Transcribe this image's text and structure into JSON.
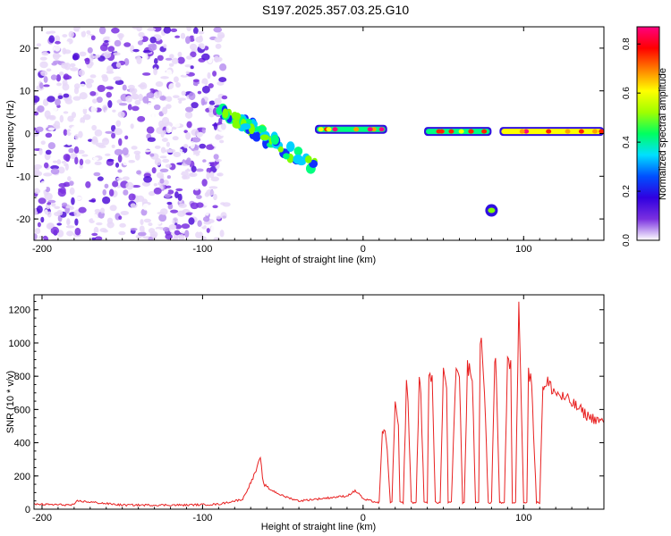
{
  "title": "S197.2025.357.03.25.G10",
  "colors": {
    "snr_line": "#e82020",
    "colormap": [
      "#ffffff",
      "#e8d8f8",
      "#b890f0",
      "#7a30e0",
      "#5010d8",
      "#1030ff",
      "#00d0ff",
      "#00ff80",
      "#80ff00",
      "#ffff00",
      "#ffa000",
      "#ff2000",
      "#ff0080"
    ]
  },
  "chart_data": [
    {
      "type": "heatmap",
      "name": "spectrogram",
      "xlabel": "Height of straight line (km)",
      "ylabel": "Frequency (Hz)",
      "xlim": [
        -205,
        150
      ],
      "ylim": [
        -25,
        25
      ],
      "x_ticks": [
        -200,
        -100,
        0,
        100
      ],
      "x_tick_labels": [
        "-200",
        "-100",
        "0",
        "100"
      ],
      "y_ticks": [
        -20,
        -10,
        0,
        10,
        20
      ],
      "y_tick_labels": [
        "-20",
        "-10",
        "0",
        "10",
        "20"
      ],
      "colorbar": {
        "label": "Normalized spectral amplitude",
        "range": [
          0.0,
          0.87
        ],
        "ticks": [
          0.0,
          0.2,
          0.4,
          0.6,
          0.8
        ],
        "tick_labels": [
          "0.0",
          "0.2",
          "0.4",
          "0.6",
          "0.8"
        ]
      },
      "features": [
        {
          "kind": "noise",
          "x_range": [
            -205,
            -85
          ],
          "freq_range": [
            -25,
            25
          ],
          "amplitude": 0.12
        },
        {
          "kind": "diagonal",
          "x_range": [
            -90,
            -30
          ],
          "freq_range": [
            6,
            -8
          ],
          "amplitude": 0.35
        },
        {
          "kind": "band",
          "x_range": [
            -30,
            15
          ],
          "freq": 1,
          "amplitude": 0.4
        },
        {
          "kind": "band",
          "x_range": [
            38,
            80
          ],
          "freq": 0.5,
          "amplitude": 0.45
        },
        {
          "kind": "blob",
          "x": 80,
          "freq": -18,
          "amplitude": 0.35
        },
        {
          "kind": "band",
          "x_range": [
            85,
            150
          ],
          "freq": 0.5,
          "amplitude": 0.55
        }
      ]
    },
    {
      "type": "line",
      "name": "snr",
      "xlabel": "Height of straight line (km)",
      "ylabel": "SNR (10 * v/v)",
      "xlim": [
        -205,
        150
      ],
      "ylim": [
        0,
        1290
      ],
      "x_ticks": [
        -200,
        -100,
        0,
        100
      ],
      "x_tick_labels": [
        "-200",
        "-100",
        "0",
        "100"
      ],
      "y_ticks": [
        0,
        200,
        400,
        600,
        800,
        1000,
        1200
      ],
      "y_tick_labels": [
        "0",
        "200",
        "400",
        "600",
        "800",
        "1000",
        "1200"
      ],
      "series": [
        {
          "name": "SNR",
          "x": [
            -205,
            -180,
            -178,
            -150,
            -110,
            -90,
            -75,
            -68,
            -64,
            -62,
            -58,
            -50,
            -40,
            -30,
            -20,
            -10,
            -5,
            -2,
            0,
            5,
            9,
            10,
            12,
            13,
            15,
            17,
            18,
            20,
            22,
            23,
            25,
            27,
            28,
            30,
            33,
            35,
            36,
            38,
            40,
            41,
            43,
            45,
            48,
            50,
            52,
            53,
            55,
            58,
            60,
            62,
            63,
            65,
            68,
            70,
            72,
            73,
            75,
            78,
            80,
            82,
            83,
            85,
            88,
            90,
            92,
            93,
            95,
            97,
            98,
            100,
            102,
            103,
            105,
            108,
            110,
            112,
            113,
            115,
            120,
            130,
            140,
            150
          ],
          "y": [
            30,
            25,
            50,
            25,
            25,
            30,
            60,
            200,
            300,
            150,
            120,
            80,
            50,
            60,
            70,
            80,
            110,
            90,
            60,
            50,
            40,
            40,
            450,
            500,
            350,
            40,
            40,
            650,
            480,
            40,
            40,
            750,
            650,
            40,
            40,
            800,
            700,
            40,
            40,
            850,
            780,
            40,
            40,
            820,
            760,
            40,
            40,
            880,
            790,
            40,
            40,
            850,
            800,
            40,
            40,
            1050,
            850,
            40,
            40,
            900,
            820,
            40,
            40,
            880,
            850,
            40,
            40,
            1280,
            900,
            40,
            40,
            820,
            760,
            40,
            40,
            760,
            720,
            760,
            700,
            640,
            560,
            520
          ]
        }
      ]
    }
  ]
}
